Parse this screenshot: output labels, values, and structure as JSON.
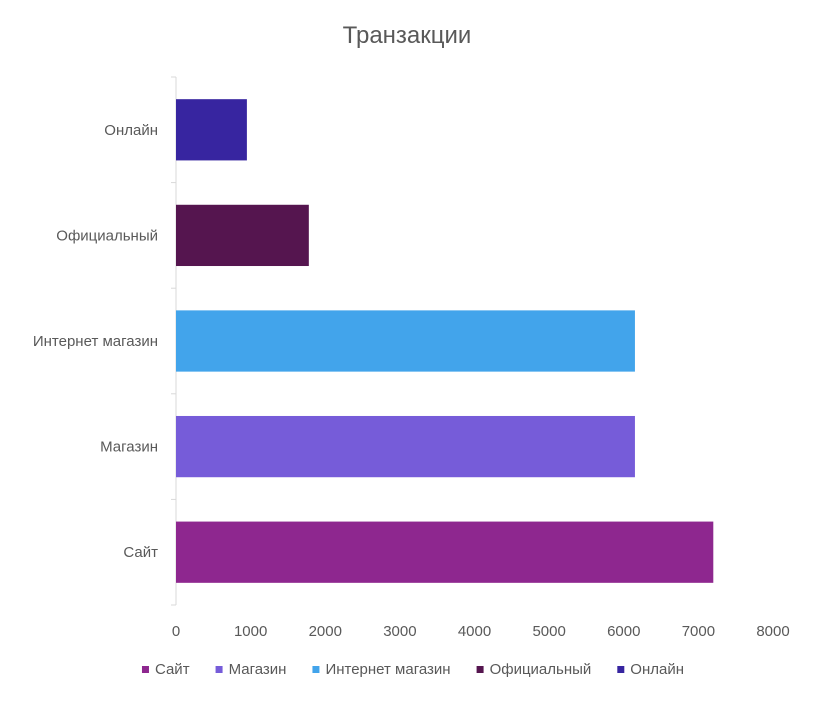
{
  "chart_data": {
    "type": "bar",
    "orientation": "horizontal",
    "title": "Транзакции",
    "categories": [
      "Сайт",
      "Магазин",
      "Интернет магазин",
      "Официальный",
      "Онлайн"
    ],
    "values": [
      7200,
      6150,
      6150,
      1780,
      950
    ],
    "colors": [
      "#8e278f",
      "#765cd9",
      "#42a4eb",
      "#55154f",
      "#3725a0"
    ],
    "xlim": [
      0,
      8000
    ],
    "xticks": [
      "0",
      "1000",
      "2000",
      "3000",
      "4000",
      "5000",
      "6000",
      "7000",
      "8000"
    ],
    "grid": false,
    "legend": {
      "position": "bottom",
      "entries": [
        "Сайт",
        "Магазин",
        "Интернет магазин",
        "Официальный",
        "Онлайн"
      ]
    }
  }
}
